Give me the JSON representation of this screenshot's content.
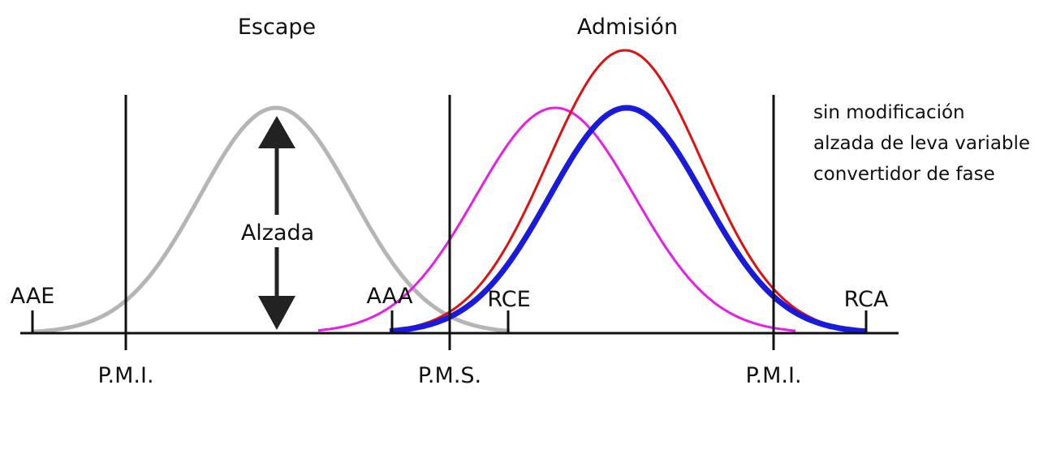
{
  "titles": {
    "escape": "Escape",
    "admision": "Admisión"
  },
  "lift_label": "Alzada",
  "markers": [
    "AAE",
    "AAA",
    "RCE",
    "RCA"
  ],
  "positions": [
    "P.M.I.",
    "P.M.S.",
    "P.M.I."
  ],
  "legend": [
    {
      "label": "sin modificación",
      "color": "#1a1adb"
    },
    {
      "label": "alzada de leva variable",
      "color": "#e01010"
    },
    {
      "label": "convertidor de fase",
      "color": "#e81ee8"
    }
  ]
}
